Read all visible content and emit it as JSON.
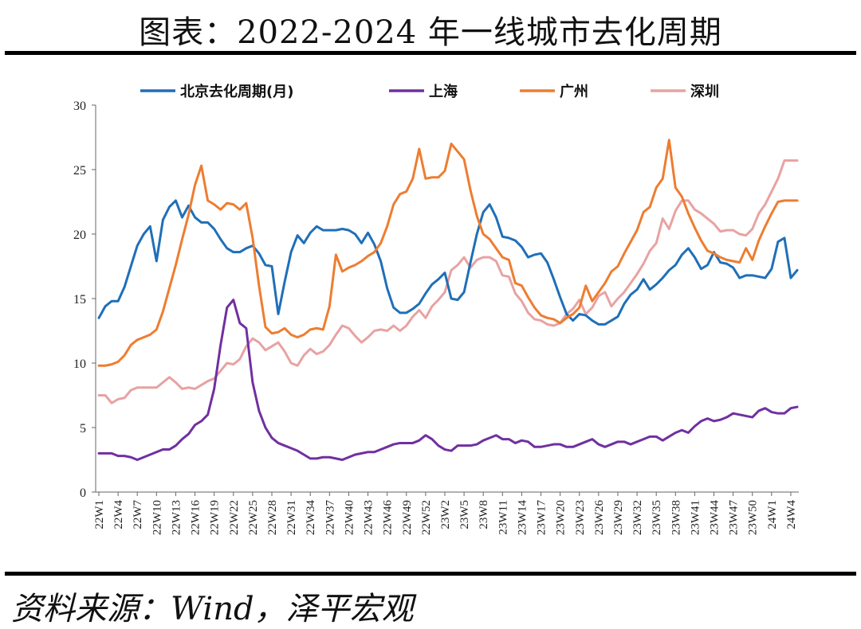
{
  "page": {
    "title": "图表：2022-2024 年一线城市去化周期",
    "source": "资料来源：Wind，泽平宏观"
  },
  "chart_data": {
    "type": "line",
    "ylim": [
      0,
      30
    ],
    "yticks": [
      0,
      5,
      10,
      15,
      20,
      25,
      30
    ],
    "xlabel": "",
    "ylabel": "",
    "grid": false,
    "legend_position": "top",
    "x_ticks": [
      "22W1",
      "22W4",
      "22W7",
      "22W10",
      "22W13",
      "22W16",
      "22W19",
      "22W22",
      "22W25",
      "22W28",
      "22W31",
      "22W34",
      "22W37",
      "22W40",
      "22W43",
      "22W46",
      "22W49",
      "22W52",
      "23W2",
      "23W5",
      "23W8",
      "23W11",
      "23W14",
      "23W17",
      "23W20",
      "23W23",
      "23W26",
      "23W29",
      "23W32",
      "23W35",
      "23W38",
      "23W41",
      "23W44",
      "23W47",
      "23W50",
      "24W1",
      "24W4"
    ],
    "tick_positions": [
      0,
      3,
      6,
      9,
      12,
      15,
      18,
      21,
      24,
      27,
      30,
      33,
      36,
      39,
      42,
      45,
      48,
      51,
      54,
      57,
      60,
      63,
      66,
      69,
      72,
      75,
      78,
      81,
      84,
      87,
      90,
      93,
      96,
      99,
      102,
      105,
      108
    ],
    "n_points": 110,
    "series": [
      {
        "name": "北京去化周期(月)",
        "color": "#1f6fb8",
        "values": [
          13.5,
          14.4,
          14.8,
          14.8,
          15.9,
          17.5,
          19.1,
          20.0,
          20.6,
          17.9,
          21.1,
          22.1,
          22.6,
          21.3,
          22.2,
          21.3,
          20.9,
          20.9,
          20.4,
          19.6,
          18.9,
          18.6,
          18.6,
          18.9,
          19.1,
          18.5,
          17.6,
          17.5,
          13.8,
          16.3,
          18.6,
          19.9,
          19.3,
          20.1,
          20.6,
          20.3,
          20.3,
          20.3,
          20.4,
          20.3,
          20.0,
          19.3,
          20.1,
          19.2,
          17.9,
          15.8,
          14.3,
          13.9,
          13.9,
          14.2,
          14.6,
          15.4,
          16.1,
          16.5,
          17.0,
          15.0,
          14.9,
          15.5,
          17.8,
          20.0,
          21.7,
          22.3,
          21.3,
          19.8,
          19.7,
          19.5,
          19.0,
          18.2,
          18.4,
          18.5,
          17.8,
          16.5,
          15.1,
          13.8,
          13.3,
          13.8,
          13.7,
          13.3,
          13.0,
          13.0,
          13.3,
          13.6,
          14.6,
          15.3,
          15.7,
          16.5,
          15.7,
          16.1,
          16.6,
          17.2,
          17.6,
          18.4,
          18.9,
          18.2,
          17.3,
          17.6,
          18.6,
          17.8,
          17.7,
          17.4,
          16.6,
          16.8,
          16.8,
          16.7,
          16.6,
          17.3,
          19.4,
          19.7,
          16.6,
          17.2
        ]
      },
      {
        "name": "上海",
        "color": "#7030a0",
        "values": [
          3.0,
          3.0,
          3.0,
          2.8,
          2.8,
          2.7,
          2.5,
          2.7,
          2.9,
          3.1,
          3.3,
          3.3,
          3.6,
          4.1,
          4.5,
          5.2,
          5.5,
          6.0,
          8.0,
          11.4,
          14.3,
          14.9,
          13.1,
          12.7,
          8.5,
          6.3,
          5.0,
          4.2,
          3.8,
          3.6,
          3.4,
          3.2,
          2.9,
          2.6,
          2.6,
          2.7,
          2.7,
          2.6,
          2.5,
          2.7,
          2.9,
          3.0,
          3.1,
          3.1,
          3.3,
          3.5,
          3.7,
          3.8,
          3.8,
          3.8,
          4.0,
          4.4,
          4.1,
          3.6,
          3.3,
          3.2,
          3.6,
          3.6,
          3.6,
          3.7,
          4.0,
          4.2,
          4.4,
          4.1,
          4.1,
          3.8,
          4.0,
          3.9,
          3.5,
          3.5,
          3.6,
          3.7,
          3.7,
          3.5,
          3.5,
          3.7,
          3.9,
          4.1,
          3.7,
          3.5,
          3.7,
          3.9,
          3.9,
          3.7,
          3.9,
          4.1,
          4.3,
          4.3,
          4.0,
          4.3,
          4.6,
          4.8,
          4.6,
          5.1,
          5.5,
          5.7,
          5.5,
          5.6,
          5.8,
          6.1,
          6.0,
          5.9,
          5.8,
          6.3,
          6.5,
          6.2,
          6.1,
          6.1,
          6.5,
          6.6
        ]
      },
      {
        "name": "广州",
        "color": "#ed7d31",
        "values": [
          9.8,
          9.8,
          9.9,
          10.1,
          10.6,
          11.4,
          11.8,
          12.0,
          12.2,
          12.6,
          14.0,
          15.8,
          17.6,
          19.6,
          21.5,
          23.8,
          25.3,
          22.6,
          22.3,
          21.9,
          22.4,
          22.3,
          21.9,
          22.4,
          19.7,
          16.0,
          12.8,
          12.3,
          12.4,
          12.7,
          12.2,
          12.0,
          12.2,
          12.6,
          12.7,
          12.6,
          14.4,
          18.4,
          17.1,
          17.4,
          17.6,
          17.9,
          18.3,
          18.6,
          19.3,
          20.6,
          22.3,
          23.1,
          23.3,
          24.3,
          26.6,
          24.3,
          24.4,
          24.4,
          24.9,
          27.0,
          26.4,
          25.8,
          23.4,
          21.4,
          20.0,
          19.6,
          18.9,
          18.2,
          18.0,
          16.2,
          16.0,
          15.1,
          14.3,
          13.7,
          13.5,
          13.4,
          13.1,
          13.5,
          13.8,
          14.3,
          16.0,
          14.8,
          15.5,
          16.2,
          17.1,
          17.5,
          18.5,
          19.4,
          20.3,
          21.7,
          22.1,
          23.6,
          24.3,
          27.3,
          23.6,
          22.9,
          21.6,
          20.5,
          19.5,
          18.7,
          18.5,
          18.2,
          18.0,
          17.9,
          17.8,
          18.9,
          18.0,
          19.5,
          20.6,
          21.6,
          22.5,
          22.6,
          22.6,
          22.6
        ]
      },
      {
        "name": "深圳",
        "color": "#e8a2a2",
        "values": [
          7.5,
          7.5,
          6.9,
          7.2,
          7.3,
          7.9,
          8.1,
          8.1,
          8.1,
          8.1,
          8.5,
          8.9,
          8.5,
          8.0,
          8.1,
          8.0,
          8.3,
          8.6,
          8.8,
          9.4,
          10.0,
          9.9,
          10.3,
          11.3,
          11.9,
          11.6,
          11.0,
          11.3,
          11.6,
          10.9,
          10.0,
          9.8,
          10.6,
          11.1,
          10.7,
          10.9,
          11.4,
          12.2,
          12.9,
          12.7,
          12.1,
          11.6,
          12.0,
          12.5,
          12.6,
          12.5,
          12.9,
          12.5,
          12.9,
          13.6,
          14.1,
          13.5,
          14.4,
          14.9,
          15.5,
          17.2,
          17.6,
          18.2,
          17.4,
          18.0,
          18.2,
          18.2,
          17.9,
          16.8,
          16.7,
          15.4,
          14.8,
          13.9,
          13.4,
          13.3,
          13.0,
          12.9,
          13.1,
          13.8,
          14.2,
          14.9,
          13.8,
          14.3,
          15.2,
          15.5,
          14.4,
          15.0,
          15.5,
          16.2,
          16.9,
          17.7,
          18.7,
          19.3,
          21.2,
          20.4,
          21.8,
          22.6,
          22.6,
          21.9,
          21.6,
          21.2,
          20.8,
          20.2,
          20.3,
          20.3,
          20.0,
          19.9,
          20.4,
          21.6,
          22.3,
          23.3,
          24.3,
          25.7,
          25.7,
          25.7
        ]
      }
    ]
  }
}
